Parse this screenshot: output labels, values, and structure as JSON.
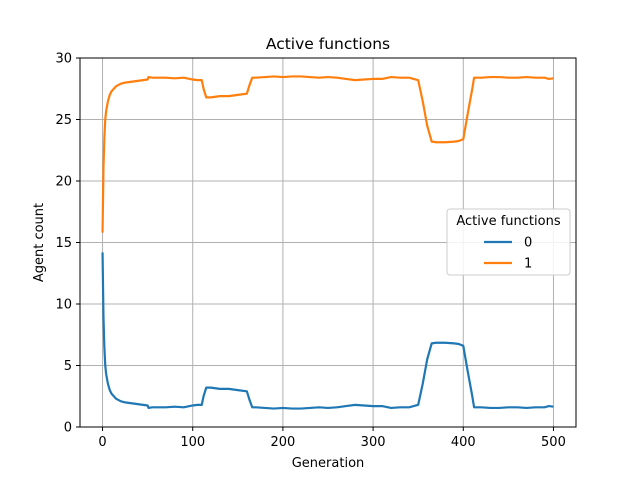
{
  "chart_data": {
    "type": "line",
    "title": "Active functions",
    "xlabel": "Generation",
    "ylabel": "Agent count",
    "xlim": [
      -25,
      525
    ],
    "ylim": [
      0,
      30
    ],
    "xticks": [
      0,
      100,
      200,
      300,
      400,
      500
    ],
    "yticks": [
      0,
      5,
      10,
      15,
      20,
      25,
      30
    ],
    "grid": true,
    "legend": {
      "title": "Active functions",
      "placement": "center-right"
    },
    "colors": {
      "0": "#1f77b4",
      "1": "#ff7f0e"
    },
    "series": [
      {
        "name": "0",
        "x": [
          0,
          1,
          2,
          3,
          4,
          6,
          8,
          10,
          15,
          20,
          25,
          30,
          35,
          40,
          45,
          50,
          51,
          55,
          60,
          70,
          80,
          90,
          100,
          105,
          110,
          112,
          115,
          120,
          130,
          140,
          150,
          160,
          163,
          166,
          170,
          180,
          190,
          200,
          210,
          220,
          230,
          240,
          250,
          260,
          270,
          280,
          290,
          300,
          310,
          320,
          330,
          340,
          345,
          350,
          355,
          360,
          365,
          370,
          380,
          390,
          395,
          400,
          405,
          410,
          412,
          420,
          430,
          440,
          450,
          460,
          470,
          480,
          490,
          495,
          500
        ],
        "values": [
          14.2,
          9.0,
          6.5,
          5.0,
          4.3,
          3.5,
          3.0,
          2.7,
          2.3,
          2.1,
          2.0,
          1.95,
          1.9,
          1.85,
          1.8,
          1.75,
          1.55,
          1.6,
          1.6,
          1.6,
          1.65,
          1.6,
          1.75,
          1.8,
          1.8,
          2.5,
          3.2,
          3.2,
          3.1,
          3.1,
          3.0,
          2.9,
          2.2,
          1.6,
          1.6,
          1.55,
          1.5,
          1.55,
          1.5,
          1.5,
          1.55,
          1.6,
          1.55,
          1.6,
          1.7,
          1.8,
          1.75,
          1.7,
          1.7,
          1.55,
          1.6,
          1.6,
          1.7,
          1.8,
          3.5,
          5.5,
          6.8,
          6.85,
          6.85,
          6.8,
          6.75,
          6.6,
          4.5,
          2.5,
          1.6,
          1.6,
          1.55,
          1.55,
          1.6,
          1.6,
          1.55,
          1.6,
          1.6,
          1.7,
          1.65
        ]
      },
      {
        "name": "1",
        "x": [
          0,
          1,
          2,
          3,
          4,
          6,
          8,
          10,
          15,
          20,
          25,
          30,
          35,
          40,
          45,
          50,
          51,
          55,
          60,
          70,
          80,
          90,
          100,
          105,
          110,
          112,
          115,
          120,
          130,
          140,
          150,
          160,
          163,
          166,
          170,
          180,
          190,
          200,
          210,
          220,
          230,
          240,
          250,
          260,
          270,
          280,
          290,
          300,
          310,
          320,
          330,
          340,
          345,
          350,
          355,
          360,
          365,
          370,
          380,
          390,
          395,
          400,
          405,
          410,
          412,
          420,
          430,
          440,
          450,
          460,
          470,
          480,
          490,
          495,
          500
        ],
        "values": [
          15.8,
          21.0,
          23.5,
          25.0,
          25.7,
          26.5,
          27.0,
          27.3,
          27.7,
          27.9,
          28.0,
          28.05,
          28.1,
          28.15,
          28.2,
          28.25,
          28.45,
          28.4,
          28.4,
          28.4,
          28.35,
          28.4,
          28.25,
          28.2,
          28.2,
          27.5,
          26.8,
          26.8,
          26.9,
          26.9,
          27.0,
          27.1,
          27.8,
          28.4,
          28.4,
          28.45,
          28.5,
          28.45,
          28.5,
          28.5,
          28.45,
          28.4,
          28.45,
          28.4,
          28.3,
          28.2,
          28.25,
          28.3,
          28.3,
          28.45,
          28.4,
          28.4,
          28.3,
          28.2,
          26.5,
          24.5,
          23.2,
          23.15,
          23.15,
          23.2,
          23.25,
          23.4,
          25.5,
          27.5,
          28.4,
          28.4,
          28.45,
          28.45,
          28.4,
          28.4,
          28.45,
          28.4,
          28.4,
          28.3,
          28.35
        ]
      }
    ]
  }
}
